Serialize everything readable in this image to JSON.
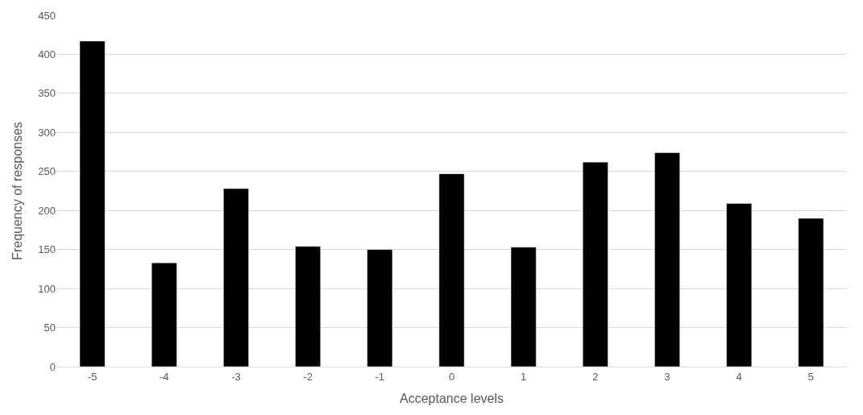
{
  "chart_data": {
    "type": "bar",
    "xlabel": "Acceptance levels",
    "ylabel": "Frequency of responses",
    "categories": [
      "-5",
      "-4",
      "-3",
      "-2",
      "-1",
      "0",
      "1",
      "2",
      "3",
      "4",
      "5"
    ],
    "values": [
      417,
      133,
      228,
      154,
      150,
      247,
      153,
      262,
      274,
      209,
      190
    ],
    "color": "#000000",
    "ylim": [
      0,
      450
    ],
    "yticks": [
      0,
      50,
      100,
      150,
      200,
      250,
      300,
      350,
      400,
      450
    ],
    "grid": "y"
  }
}
